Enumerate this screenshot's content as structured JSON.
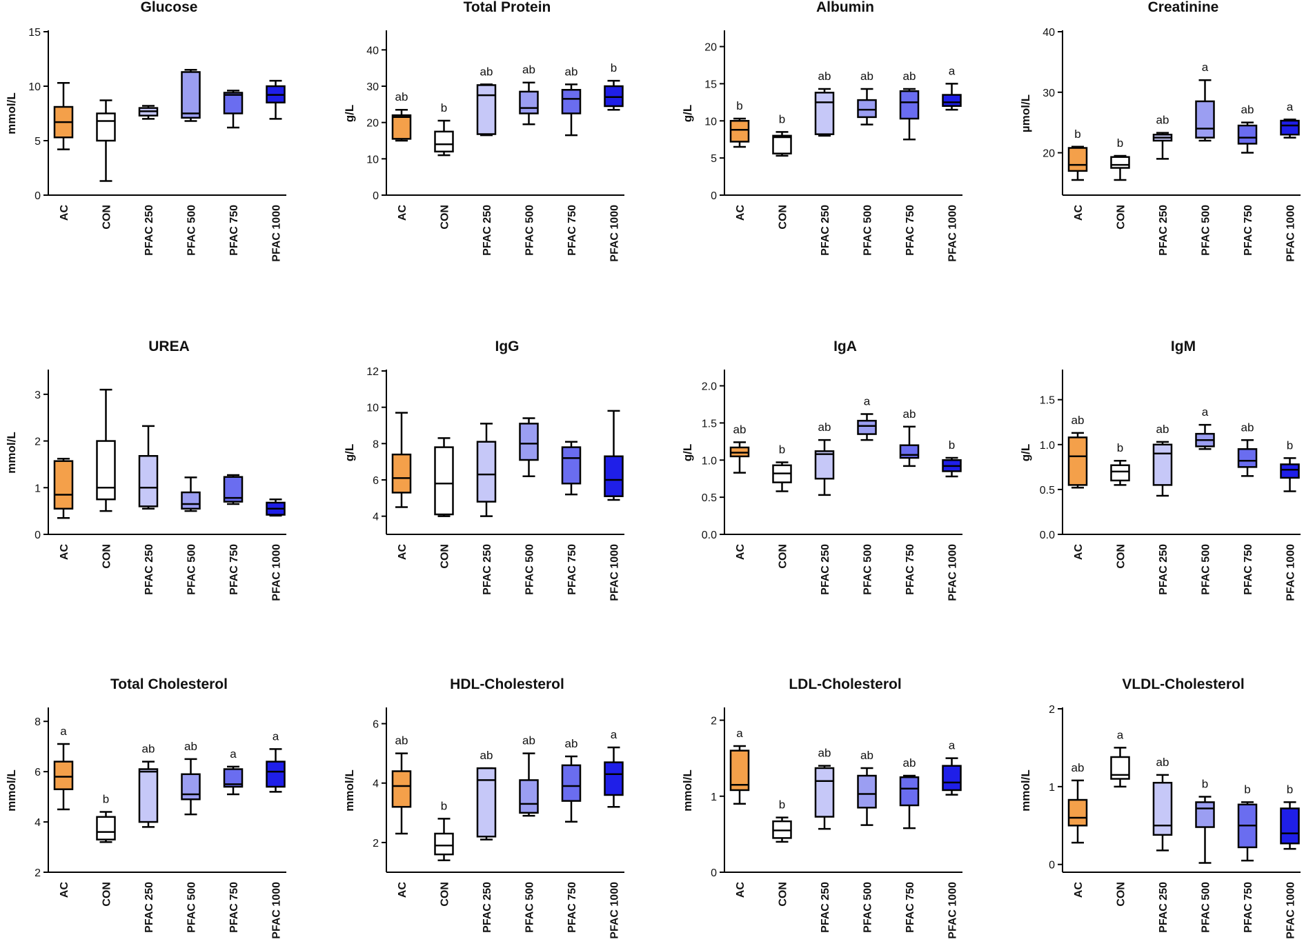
{
  "groups": [
    "AC",
    "CON",
    "PFAC 250",
    "PFAC 500",
    "PFAC 750",
    "PFAC 1000"
  ],
  "group_colors": [
    "#f4a04a",
    "#ffffff",
    "#c6c8f8",
    "#9b9ef2",
    "#6a6df0",
    "#1f1fe8"
  ],
  "chart_data": [
    {
      "type": "box",
      "title": "Glucose",
      "ylabel": "mmol/L",
      "ylim": [
        0,
        15
      ],
      "yticks": [
        0,
        5,
        10,
        15
      ],
      "tick_labels": [
        "0",
        "5",
        "10",
        "15"
      ],
      "boxes": [
        [
          4.2,
          5.3,
          6.7,
          8.1,
          10.3
        ],
        [
          1.3,
          5.0,
          6.8,
          7.5,
          8.7
        ],
        [
          7.0,
          7.3,
          7.7,
          8.0,
          8.2
        ],
        [
          6.8,
          7.1,
          7.5,
          11.3,
          11.5
        ],
        [
          6.2,
          7.5,
          9.2,
          9.4,
          9.6
        ],
        [
          7.0,
          8.5,
          9.2,
          10.0,
          10.5
        ]
      ],
      "letters": [
        "",
        "",
        "",
        "",
        "",
        ""
      ]
    },
    {
      "type": "box",
      "title": "Total Protein",
      "ylabel": "g/L",
      "ylim": [
        0,
        45
      ],
      "yticks": [
        0,
        10,
        20,
        30,
        40
      ],
      "tick_labels": [
        "0",
        "10",
        "20",
        "30",
        "40"
      ],
      "boxes": [
        [
          15.0,
          15.5,
          21.5,
          22.0,
          23.5
        ],
        [
          11.0,
          12.0,
          14.0,
          17.5,
          20.5
        ],
        [
          16.5,
          16.8,
          27.5,
          30.3,
          30.5
        ],
        [
          19.5,
          22.5,
          24.0,
          28.5,
          31.0
        ],
        [
          16.5,
          22.5,
          26.5,
          29.0,
          30.5
        ],
        [
          23.5,
          24.5,
          27.0,
          30.0,
          31.5
        ]
      ],
      "letters": [
        "ab",
        "b",
        "ab",
        "ab",
        "ab",
        "b"
      ]
    },
    {
      "type": "box",
      "title": "Albumin",
      "ylabel": "g/L",
      "ylim": [
        0,
        22
      ],
      "yticks": [
        0,
        5,
        10,
        15,
        20
      ],
      "tick_labels": [
        "0",
        "5",
        "10",
        "15",
        "20"
      ],
      "boxes": [
        [
          6.5,
          7.2,
          8.8,
          10.0,
          10.3
        ],
        [
          5.3,
          5.6,
          7.8,
          8.0,
          8.5
        ],
        [
          8.0,
          8.2,
          12.5,
          13.8,
          14.3
        ],
        [
          9.5,
          10.5,
          11.5,
          12.8,
          14.3
        ],
        [
          7.5,
          10.3,
          12.5,
          14.0,
          14.3
        ],
        [
          11.5,
          12.0,
          12.5,
          13.5,
          15.0
        ]
      ],
      "letters": [
        "b",
        "b",
        "ab",
        "ab",
        "ab",
        "a"
      ]
    },
    {
      "type": "box",
      "title": "Creatinine",
      "ylabel": "µmol/L",
      "ylim": [
        13,
        40
      ],
      "yticks": [
        20,
        30,
        40
      ],
      "tick_labels": [
        "20",
        "30",
        "40"
      ],
      "boxes": [
        [
          15.5,
          17.0,
          18.0,
          20.8,
          21.0
        ],
        [
          15.5,
          17.5,
          18.0,
          19.3,
          19.5
        ],
        [
          19.0,
          22.0,
          22.5,
          23.0,
          23.3
        ],
        [
          22.0,
          22.5,
          24.0,
          28.5,
          32.0
        ],
        [
          20.0,
          21.5,
          22.5,
          24.5,
          25.0
        ],
        [
          22.5,
          23.0,
          24.5,
          25.3,
          25.5
        ]
      ],
      "letters": [
        "b",
        "b",
        "ab",
        "a",
        "ab",
        "a"
      ]
    },
    {
      "type": "box",
      "title": "UREA",
      "ylabel": "mmol/L",
      "ylim": [
        0,
        3.5
      ],
      "yticks": [
        0,
        1,
        2,
        3
      ],
      "tick_labels": [
        "0",
        "1",
        "2",
        "3"
      ],
      "boxes": [
        [
          0.35,
          0.55,
          0.85,
          1.57,
          1.62
        ],
        [
          0.5,
          0.75,
          1.0,
          2.0,
          3.1
        ],
        [
          0.55,
          0.6,
          1.0,
          1.68,
          2.32
        ],
        [
          0.5,
          0.55,
          0.65,
          0.9,
          1.22
        ],
        [
          0.65,
          0.7,
          0.78,
          1.23,
          1.27
        ],
        [
          0.4,
          0.42,
          0.55,
          0.68,
          0.75
        ]
      ],
      "letters": [
        "",
        "",
        "",
        "",
        "",
        ""
      ]
    },
    {
      "type": "box",
      "title": "IgG",
      "ylabel": "g/L",
      "ylim": [
        3,
        12
      ],
      "yticks": [
        4,
        6,
        8,
        10,
        12
      ],
      "tick_labels": [
        "4",
        "6",
        "8",
        "10",
        "12"
      ],
      "boxes": [
        [
          4.5,
          5.3,
          6.1,
          7.4,
          9.7
        ],
        [
          4.0,
          4.1,
          5.8,
          7.8,
          8.3
        ],
        [
          4.0,
          4.8,
          6.3,
          8.1,
          9.1
        ],
        [
          6.2,
          7.1,
          8.0,
          9.1,
          9.4
        ],
        [
          5.2,
          5.8,
          7.2,
          7.8,
          8.1
        ],
        [
          4.9,
          5.1,
          6.0,
          7.3,
          9.8
        ]
      ],
      "letters": [
        "",
        "",
        "",
        "",
        "",
        ""
      ]
    },
    {
      "type": "box",
      "title": "IgA",
      "ylabel": "g/L",
      "ylim": [
        0,
        2.2
      ],
      "yticks": [
        0,
        0.5,
        1.0,
        1.5,
        2.0
      ],
      "tick_labels": [
        "0.0",
        "0.5",
        "1.0",
        "1.5",
        "2.0"
      ],
      "boxes": [
        [
          0.83,
          1.05,
          1.1,
          1.17,
          1.24
        ],
        [
          0.58,
          0.7,
          0.82,
          0.93,
          0.97
        ],
        [
          0.53,
          0.75,
          1.08,
          1.12,
          1.27
        ],
        [
          1.27,
          1.35,
          1.46,
          1.53,
          1.62
        ],
        [
          0.92,
          1.03,
          1.07,
          1.2,
          1.45
        ],
        [
          0.78,
          0.85,
          0.92,
          1.0,
          1.03
        ]
      ],
      "letters": [
        "ab",
        "b",
        "ab",
        "a",
        "ab",
        "b"
      ]
    },
    {
      "type": "box",
      "title": "IgM",
      "ylabel": "g/L",
      "ylim": [
        0,
        1.82
      ],
      "yticks": [
        0,
        0.5,
        1.0,
        1.5
      ],
      "tick_labels": [
        "0.0",
        "0.5",
        "1.0",
        "1.5"
      ],
      "boxes": [
        [
          0.52,
          0.55,
          0.87,
          1.08,
          1.13
        ],
        [
          0.55,
          0.6,
          0.7,
          0.77,
          0.82
        ],
        [
          0.43,
          0.55,
          0.9,
          1.0,
          1.03
        ],
        [
          0.95,
          0.98,
          1.05,
          1.12,
          1.22
        ],
        [
          0.65,
          0.75,
          0.82,
          0.95,
          1.05
        ],
        [
          0.48,
          0.63,
          0.72,
          0.78,
          0.85
        ]
      ],
      "letters": [
        "ab",
        "b",
        "ab",
        "a",
        "ab",
        "b"
      ]
    },
    {
      "type": "box",
      "title": "Total Cholesterol",
      "ylabel": "mmol/L",
      "ylim": [
        2,
        8.5
      ],
      "yticks": [
        2,
        4,
        6,
        8
      ],
      "tick_labels": [
        "2",
        "4",
        "6",
        "8"
      ],
      "boxes": [
        [
          4.5,
          5.3,
          5.8,
          6.4,
          7.1
        ],
        [
          3.2,
          3.3,
          3.6,
          4.2,
          4.4
        ],
        [
          3.8,
          4.0,
          6.0,
          6.1,
          6.4
        ],
        [
          4.3,
          4.9,
          5.1,
          5.9,
          6.5
        ],
        [
          5.1,
          5.4,
          5.5,
          6.1,
          6.2
        ],
        [
          5.2,
          5.4,
          6.0,
          6.4,
          6.9
        ]
      ],
      "letters": [
        "a",
        "b",
        "ab",
        "ab",
        "a",
        "a"
      ]
    },
    {
      "type": "box",
      "title": "HDL-Cholesterol",
      "ylabel": "mmol/L",
      "ylim": [
        1,
        6.5
      ],
      "yticks": [
        2,
        4,
        6
      ],
      "tick_labels": [
        "2",
        "4",
        "6"
      ],
      "boxes": [
        [
          2.3,
          3.2,
          3.9,
          4.4,
          5.0
        ],
        [
          1.4,
          1.6,
          1.9,
          2.3,
          2.8
        ],
        [
          2.1,
          2.2,
          4.1,
          4.5,
          4.5
        ],
        [
          2.9,
          3.0,
          3.3,
          4.1,
          5.0
        ],
        [
          2.7,
          3.4,
          3.9,
          4.6,
          4.9
        ],
        [
          3.2,
          3.6,
          4.3,
          4.7,
          5.2
        ]
      ],
      "letters": [
        "ab",
        "b",
        "ab",
        "ab",
        "ab",
        "a"
      ]
    },
    {
      "type": "box",
      "title": "LDL-Cholesterol",
      "ylabel": "mmol/L",
      "ylim": [
        0,
        2.15
      ],
      "yticks": [
        0,
        1,
        2
      ],
      "tick_labels": [
        "0",
        "1",
        "2"
      ],
      "boxes": [
        [
          0.9,
          1.08,
          1.15,
          1.6,
          1.66
        ],
        [
          0.4,
          0.45,
          0.55,
          0.67,
          0.72
        ],
        [
          0.57,
          0.73,
          1.2,
          1.37,
          1.4
        ],
        [
          0.62,
          0.85,
          1.03,
          1.27,
          1.37
        ],
        [
          0.58,
          0.88,
          1.1,
          1.25,
          1.27
        ],
        [
          1.02,
          1.08,
          1.18,
          1.4,
          1.5
        ]
      ],
      "letters": [
        "a",
        "b",
        "ab",
        "ab",
        "ab",
        "a"
      ]
    },
    {
      "type": "box",
      "title": "VLDL-Cholesterol",
      "ylabel": "mmol/L",
      "ylim": [
        -0.1,
        2.0
      ],
      "yticks": [
        0,
        1,
        2
      ],
      "tick_labels": [
        "0",
        "1",
        "2"
      ],
      "boxes": [
        [
          0.28,
          0.5,
          0.6,
          0.83,
          1.08
        ],
        [
          1.0,
          1.1,
          1.15,
          1.38,
          1.5
        ],
        [
          0.18,
          0.38,
          0.5,
          1.05,
          1.15
        ],
        [
          0.02,
          0.48,
          0.72,
          0.8,
          0.87
        ],
        [
          0.05,
          0.22,
          0.5,
          0.77,
          0.8
        ],
        [
          0.2,
          0.27,
          0.4,
          0.72,
          0.8
        ]
      ],
      "letters": [
        "ab",
        "a",
        "ab",
        "b",
        "b",
        "b"
      ]
    }
  ]
}
